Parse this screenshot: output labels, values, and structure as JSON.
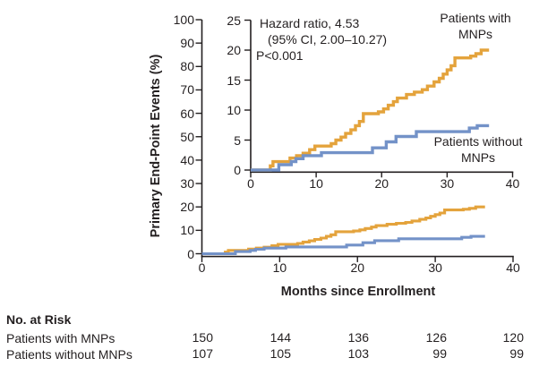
{
  "figure": {
    "y_axis_title": "Primary End-Point Events (%)",
    "x_axis_title": "Months since Enrollment",
    "annotation": {
      "line1": "Hazard ratio, 4.53",
      "line2": "(95% CI, 2.00–10.27)",
      "line3": "P<0.001"
    },
    "series_labels": {
      "with": [
        "Patients with",
        "MNPs"
      ],
      "without": [
        "Patients without",
        "MNPs"
      ]
    }
  },
  "chart_data": {
    "type": "line",
    "subtype": "step-cumulative-incidence-with-inset",
    "title": "",
    "xlabel": "Months since Enrollment",
    "ylabel": "Primary End-Point Events (%)",
    "x_ticks": [
      0,
      10,
      20,
      30,
      40
    ],
    "main_y_ticks": [
      0,
      10,
      20,
      30,
      40,
      50,
      60,
      70,
      80,
      90,
      100
    ],
    "inset_y_ticks": [
      0,
      5,
      10,
      15,
      20,
      25
    ],
    "x_range": [
      0,
      40
    ],
    "main_y_range": [
      0,
      100
    ],
    "inset_y_range": [
      0,
      25
    ],
    "grid": false,
    "annotations": [
      "Hazard ratio, 4.53",
      "(95% CI, 2.00–10.27)",
      "P<0.001"
    ],
    "series": [
      {
        "name": "Patients with MNPs",
        "color": "#E4A33C",
        "points": [
          [
            0,
            0
          ],
          [
            3,
            0.7
          ],
          [
            3.4,
            1.4
          ],
          [
            6,
            2.0
          ],
          [
            7,
            2.4
          ],
          [
            8,
            2.8
          ],
          [
            9,
            3.4
          ],
          [
            9.8,
            4.0
          ],
          [
            12.3,
            4.4
          ],
          [
            13,
            5.0
          ],
          [
            13.8,
            5.5
          ],
          [
            14.5,
            6.1
          ],
          [
            15.3,
            6.7
          ],
          [
            16,
            7.4
          ],
          [
            16.6,
            8.1
          ],
          [
            17.2,
            9.4
          ],
          [
            19.5,
            9.7
          ],
          [
            20.3,
            10.2
          ],
          [
            21,
            10.8
          ],
          [
            21.8,
            11.4
          ],
          [
            22.4,
            12.0
          ],
          [
            23.8,
            12.6
          ],
          [
            25,
            13.0
          ],
          [
            26.2,
            13.4
          ],
          [
            27,
            14.0
          ],
          [
            28,
            14.7
          ],
          [
            28.8,
            15.3
          ],
          [
            29.4,
            16.0
          ],
          [
            30,
            16.7
          ],
          [
            30.6,
            17.4
          ],
          [
            31.2,
            18.7
          ],
          [
            33.6,
            19.0
          ],
          [
            34.4,
            19.4
          ],
          [
            35.2,
            20.0
          ],
          [
            36.4,
            20.0
          ]
        ]
      },
      {
        "name": "Patients without MNPs",
        "color": "#7392C8",
        "points": [
          [
            0,
            0
          ],
          [
            4.3,
            0.9
          ],
          [
            6.2,
            1.4
          ],
          [
            6.9,
            1.9
          ],
          [
            8,
            2.4
          ],
          [
            10.8,
            2.9
          ],
          [
            18.6,
            3.7
          ],
          [
            20.7,
            4.7
          ],
          [
            22.2,
            5.6
          ],
          [
            25.3,
            6.4
          ],
          [
            33.4,
            7.0
          ],
          [
            34.6,
            7.4
          ],
          [
            36.4,
            7.4
          ]
        ]
      }
    ]
  },
  "risk_table": {
    "title": "No. at Risk",
    "time_points": [
      0,
      10,
      20,
      30,
      40
    ],
    "rows": [
      {
        "label": "Patients with MNPs",
        "values": [
          "150",
          "144",
          "136",
          "126",
          "120"
        ]
      },
      {
        "label": "Patients without MNPs",
        "values": [
          "107",
          "105",
          "103",
          "99",
          "99"
        ]
      }
    ]
  },
  "colors": {
    "with_mnps": "#E4A33C",
    "without_mnps": "#7392C8",
    "axis": "#231F20",
    "text": "#231F20"
  }
}
